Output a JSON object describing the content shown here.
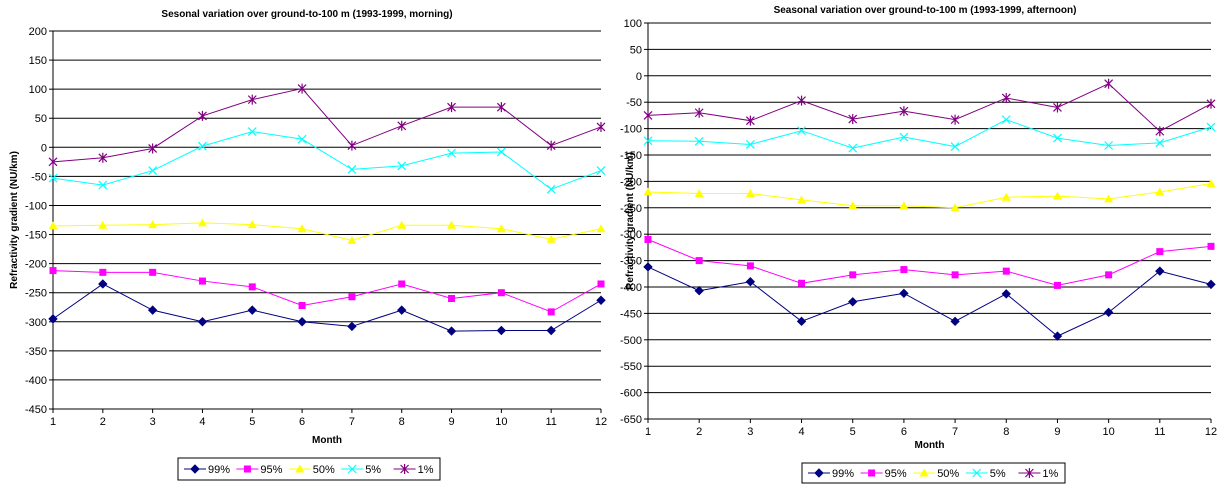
{
  "chart_data": [
    {
      "type": "line",
      "title": "Sesonal variation over ground-to-100 m (1993-1999, morning)",
      "xlabel": "Month",
      "ylabel": "Refractivity gradient (NU/km)",
      "x": [
        1,
        2,
        3,
        4,
        5,
        6,
        7,
        8,
        9,
        10,
        11,
        12
      ],
      "ylim": [
        -450,
        200
      ],
      "ystep": 50,
      "grid": true,
      "legend_position": "bottom",
      "series": [
        {
          "name": "99%",
          "color": "#000080",
          "marker": "diamond",
          "values": [
            -295,
            -235,
            -280,
            -300,
            -280,
            -300,
            -308,
            -280,
            -316,
            -315,
            -315,
            -263
          ]
        },
        {
          "name": "95%",
          "color": "#ff00ff",
          "marker": "square",
          "values": [
            -212,
            -215,
            -215,
            -230,
            -240,
            -272,
            -257,
            -235,
            -260,
            -250,
            -283,
            -235
          ]
        },
        {
          "name": "50%",
          "color": "#ffff00",
          "marker": "triangle",
          "values": [
            -135,
            -134,
            -133,
            -130,
            -133,
            -140,
            -160,
            -134,
            -134,
            -140,
            -158,
            -140
          ]
        },
        {
          "name": "5%",
          "color": "#00ffff",
          "marker": "x",
          "values": [
            -53,
            -65,
            -40,
            2,
            27,
            14,
            -38,
            -32,
            -10,
            -8,
            -72,
            -40
          ]
        },
        {
          "name": "1%",
          "color": "#800080",
          "marker": "star",
          "values": [
            -25,
            -18,
            -2,
            54,
            82,
            101,
            3,
            37,
            69,
            69,
            3,
            35
          ]
        }
      ]
    },
    {
      "type": "line",
      "title": "Seasonal variation over ground-to-100 m (1993-1999, afternoon)",
      "xlabel": "Month",
      "ylabel": "Refractivity gradient (NU/km)",
      "x": [
        1,
        2,
        3,
        4,
        5,
        6,
        7,
        8,
        9,
        10,
        11,
        12
      ],
      "ylim": [
        -650,
        100
      ],
      "ystep": 50,
      "grid": true,
      "legend_position": "bottom",
      "series": [
        {
          "name": "99%",
          "color": "#000080",
          "marker": "diamond",
          "values": [
            -362,
            -407,
            -390,
            -465,
            -428,
            -412,
            -465,
            -413,
            -493,
            -448,
            -370,
            -395
          ]
        },
        {
          "name": "95%",
          "color": "#ff00ff",
          "marker": "square",
          "values": [
            -310,
            -350,
            -360,
            -393,
            -377,
            -367,
            -377,
            -370,
            -397,
            -377,
            -333,
            -323
          ]
        },
        {
          "name": "50%",
          "color": "#ffff00",
          "marker": "triangle",
          "values": [
            -220,
            -223,
            -223,
            -235,
            -246,
            -246,
            -250,
            -230,
            -228,
            -233,
            -220,
            -204
          ]
        },
        {
          "name": "5%",
          "color": "#00ffff",
          "marker": "x",
          "values": [
            -123,
            -124,
            -130,
            -104,
            -137,
            -116,
            -134,
            -83,
            -118,
            -132,
            -127,
            -97
          ]
        },
        {
          "name": "1%",
          "color": "#800080",
          "marker": "star",
          "values": [
            -75,
            -70,
            -85,
            -47,
            -82,
            -67,
            -83,
            -42,
            -60,
            -15,
            -105,
            -53
          ]
        }
      ]
    }
  ]
}
